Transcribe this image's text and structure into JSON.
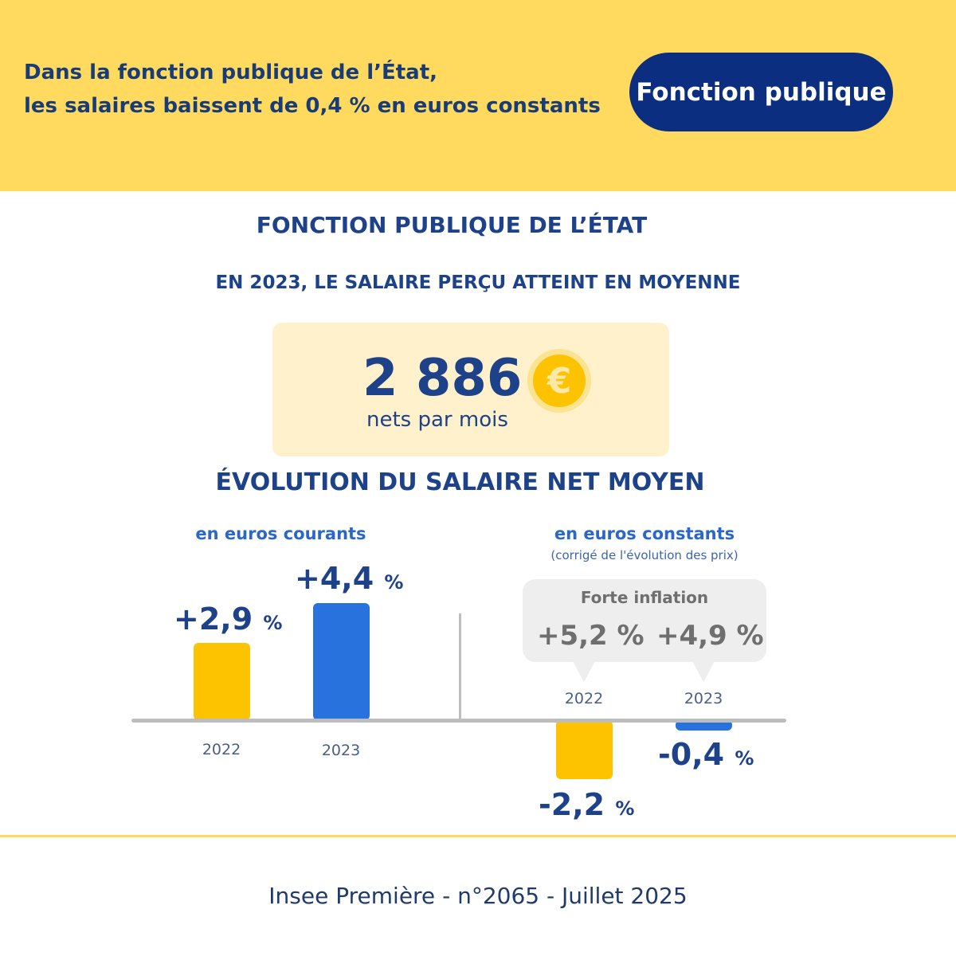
{
  "header": {
    "headline_line1": "Dans la fonction publique de l’État,",
    "headline_line2": "les salaires baissent de 0,4 % en euros constants",
    "pill": "Fonction publique"
  },
  "section_title": "FONCTION PUBLIQUE DE L’ÉTAT",
  "subtitle": "EN 2023, LE SALAIRE PERÇU ATTEINT EN MOYENNE",
  "salary": {
    "amount": "2 886",
    "currency_icon": "€",
    "unit": "nets par mois"
  },
  "evolution_title": "ÉVOLUTION DU SALAIRE NET MOYEN",
  "inflation": {
    "title": "Forte inflation",
    "values": [
      "+5,2 %",
      "+4,9 %"
    ]
  },
  "chart_data": [
    {
      "type": "bar",
      "title": "en euros courants",
      "categories": [
        "2022",
        "2023"
      ],
      "values": [
        2.9,
        4.4
      ],
      "labels": [
        "+2,9",
        "+4,4"
      ],
      "unit": "%",
      "colors": [
        "#FDC300",
        "#2872DE"
      ]
    },
    {
      "type": "bar",
      "title": "en euros constants",
      "subtitle": "(corrigé de l'évolution des prix)",
      "categories": [
        "2022",
        "2023"
      ],
      "values": [
        -2.2,
        -0.4
      ],
      "labels": [
        "-2,2",
        "-0,4"
      ],
      "unit": "%",
      "colors": [
        "#FDC300",
        "#2872DE"
      ]
    }
  ],
  "footer": "Insee Première - n°2065 - Juillet 2025"
}
